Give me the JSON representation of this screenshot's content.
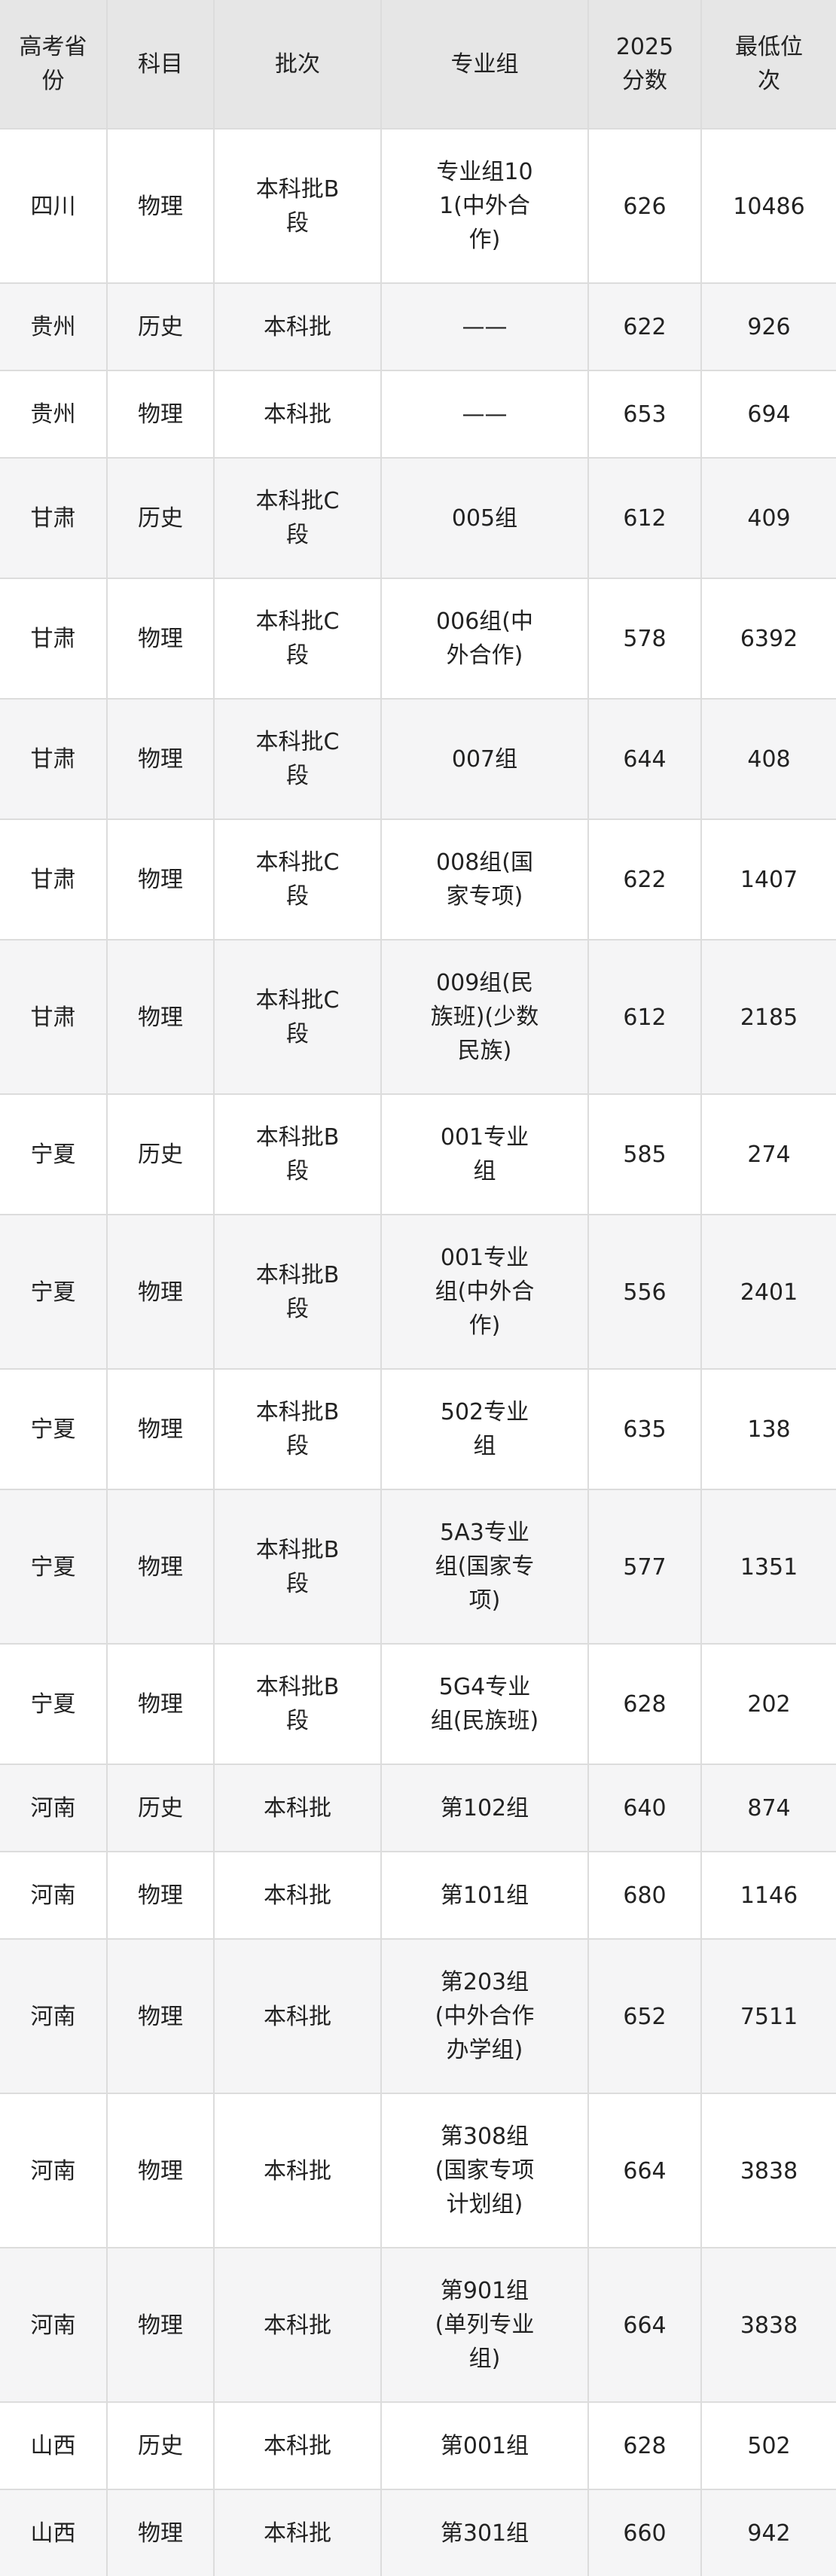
{
  "colors": {
    "header_bg": "#e6e6e6",
    "stripe_bg": "#f5f5f6",
    "row_bg": "#ffffff",
    "border": "#dcdcdc",
    "text": "#222222"
  },
  "table": {
    "columns": [
      {
        "key": "province",
        "label": "高考省份"
      },
      {
        "key": "subject",
        "label": "科目"
      },
      {
        "key": "batch",
        "label": "批次"
      },
      {
        "key": "group",
        "label": "专业组"
      },
      {
        "key": "score",
        "label": "2025分数"
      },
      {
        "key": "rank",
        "label": "最低位次"
      }
    ],
    "rows": [
      {
        "province": "四川",
        "subject": "物理",
        "batch": "本科批B段",
        "group": "专业组101(中外合作)",
        "score": "626",
        "rank": "10486"
      },
      {
        "province": "贵州",
        "subject": "历史",
        "batch": "本科批",
        "group": "——",
        "score": "622",
        "rank": "926"
      },
      {
        "province": "贵州",
        "subject": "物理",
        "batch": "本科批",
        "group": "——",
        "score": "653",
        "rank": "694"
      },
      {
        "province": "甘肃",
        "subject": "历史",
        "batch": "本科批C段",
        "group": "005组",
        "score": "612",
        "rank": "409"
      },
      {
        "province": "甘肃",
        "subject": "物理",
        "batch": "本科批C段",
        "group": "006组(中外合作)",
        "score": "578",
        "rank": "6392"
      },
      {
        "province": "甘肃",
        "subject": "物理",
        "batch": "本科批C段",
        "group": "007组",
        "score": "644",
        "rank": "408"
      },
      {
        "province": "甘肃",
        "subject": "物理",
        "batch": "本科批C段",
        "group": "008组(国家专项)",
        "score": "622",
        "rank": "1407"
      },
      {
        "province": "甘肃",
        "subject": "物理",
        "batch": "本科批C段",
        "group": "009组(民族班)(少数民族)",
        "score": "612",
        "rank": "2185"
      },
      {
        "province": "宁夏",
        "subject": "历史",
        "batch": "本科批B段",
        "group": "001专业组",
        "score": "585",
        "rank": "274"
      },
      {
        "province": "宁夏",
        "subject": "物理",
        "batch": "本科批B段",
        "group": "001专业组(中外合作)",
        "score": "556",
        "rank": "2401"
      },
      {
        "province": "宁夏",
        "subject": "物理",
        "batch": "本科批B段",
        "group": "502专业组",
        "score": "635",
        "rank": "138"
      },
      {
        "province": "宁夏",
        "subject": "物理",
        "batch": "本科批B段",
        "group": "5A3专业组(国家专项)",
        "score": "577",
        "rank": "1351"
      },
      {
        "province": "宁夏",
        "subject": "物理",
        "batch": "本科批B段",
        "group": "5G4专业组(民族班)",
        "score": "628",
        "rank": "202"
      },
      {
        "province": "河南",
        "subject": "历史",
        "batch": "本科批",
        "group": "第102组",
        "score": "640",
        "rank": "874"
      },
      {
        "province": "河南",
        "subject": "物理",
        "batch": "本科批",
        "group": "第101组",
        "score": "680",
        "rank": "1146"
      },
      {
        "province": "河南",
        "subject": "物理",
        "batch": "本科批",
        "group": "第203组(中外合作办学组)",
        "score": "652",
        "rank": "7511"
      },
      {
        "province": "河南",
        "subject": "物理",
        "batch": "本科批",
        "group": "第308组(国家专项计划组)",
        "score": "664",
        "rank": "3838"
      },
      {
        "province": "河南",
        "subject": "物理",
        "batch": "本科批",
        "group": "第901组(单列专业组)",
        "score": "664",
        "rank": "3838"
      },
      {
        "province": "山西",
        "subject": "历史",
        "batch": "本科批",
        "group": "第001组",
        "score": "628",
        "rank": "502"
      },
      {
        "province": "山西",
        "subject": "物理",
        "batch": "本科批",
        "group": "第301组",
        "score": "660",
        "rank": "942"
      }
    ]
  }
}
